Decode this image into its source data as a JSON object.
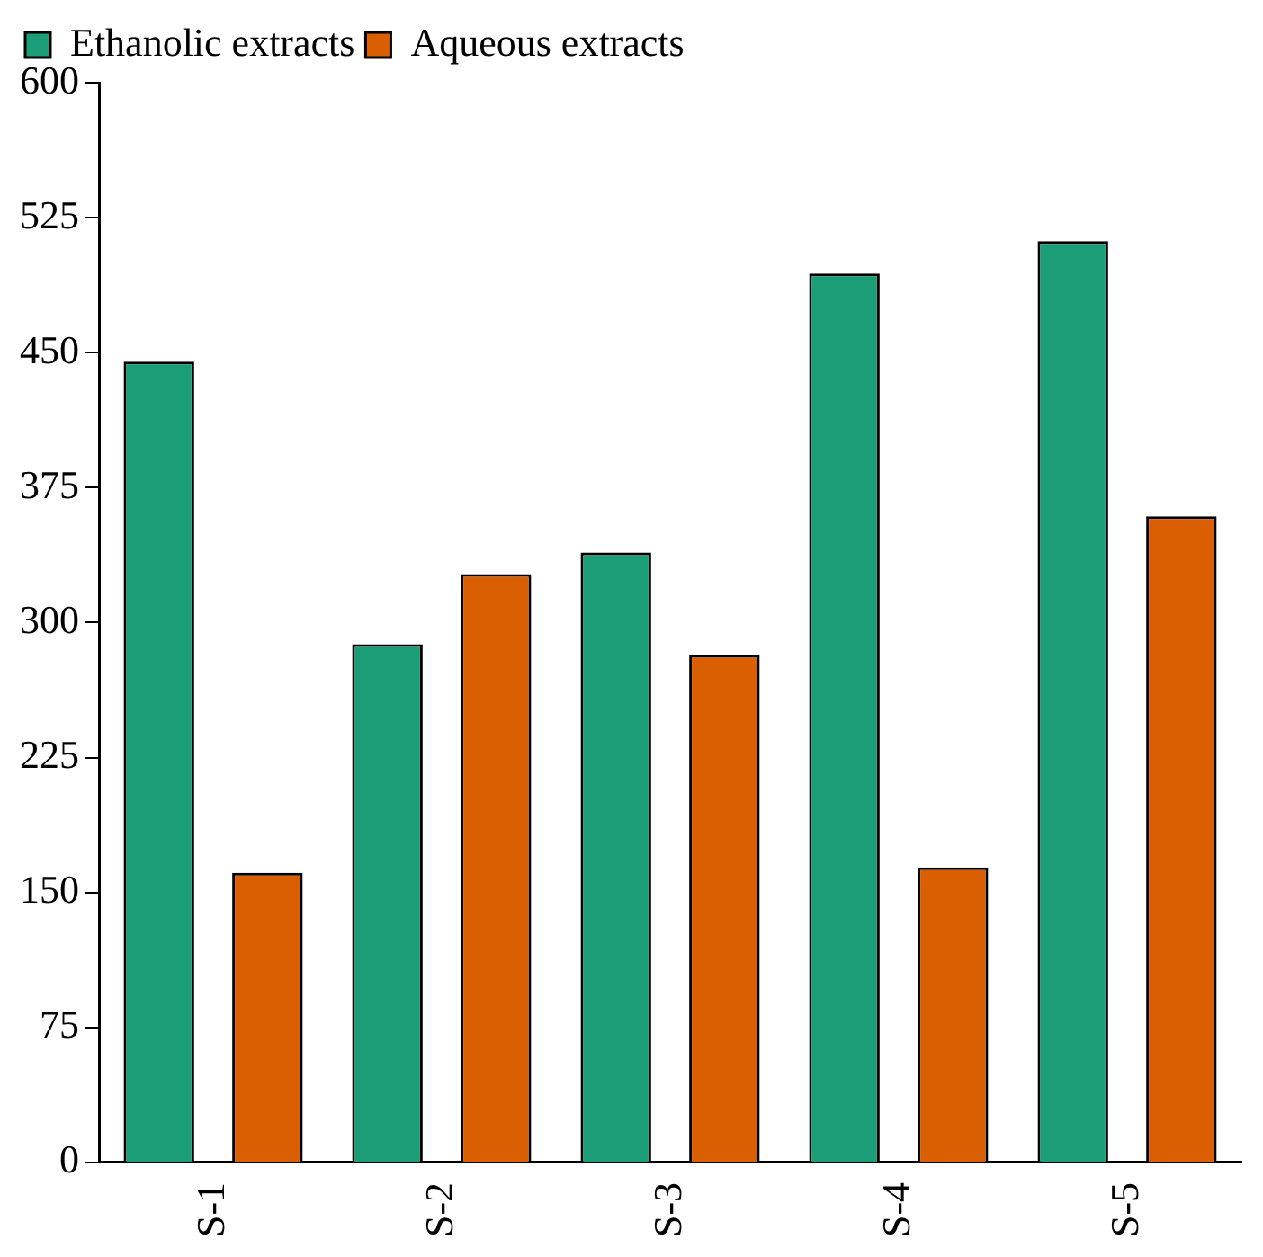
{
  "chart_data": {
    "type": "bar",
    "categories": [
      "S-1",
      "S-2",
      "S-3",
      "S-4",
      "S-5"
    ],
    "series": [
      {
        "name": "Ethanolic extracts",
        "color": "#1b9e77",
        "values": [
          445,
          288,
          339,
          494,
          512
        ]
      },
      {
        "name": "Aqueous extracts",
        "color": "#d95f02",
        "values": [
          161,
          327,
          282,
          164,
          359
        ]
      }
    ],
    "ylim": [
      0,
      600
    ],
    "yticks": [
      0,
      75,
      150,
      225,
      300,
      375,
      450,
      525,
      600
    ],
    "grid": false,
    "legend": "top left"
  }
}
